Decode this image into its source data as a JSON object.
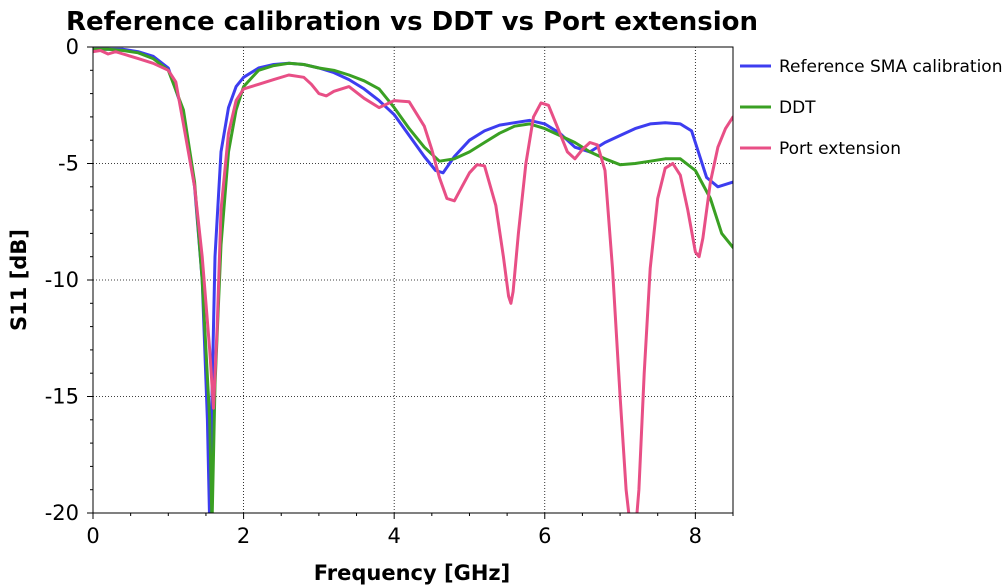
{
  "chart_data": {
    "type": "line",
    "title": "Reference calibration vs DDT vs Port extension",
    "xlabel": "Frequency [GHz]",
    "ylabel": "S11 [dB]",
    "xlim": [
      0,
      8.5
    ],
    "ylim": [
      -20,
      0
    ],
    "xticks": [
      0,
      2,
      4,
      6,
      8
    ],
    "xtick_labels": [
      "0",
      "2",
      "4",
      "6",
      "8"
    ],
    "yticks": [
      0,
      -5,
      -10,
      -15,
      -20
    ],
    "ytick_labels": [
      "0",
      "-5",
      "-10",
      "-15",
      "-20"
    ],
    "grid": true,
    "legend_position": "right",
    "series": [
      {
        "name": "Reference SMA calibration",
        "color": "#3d3df0",
        "x": [
          0,
          0.2,
          0.4,
          0.6,
          0.8,
          1.0,
          1.2,
          1.35,
          1.45,
          1.52,
          1.55,
          1.58,
          1.62,
          1.7,
          1.8,
          1.9,
          2.0,
          2.2,
          2.4,
          2.6,
          2.8,
          3.0,
          3.2,
          3.4,
          3.6,
          3.8,
          4.0,
          4.2,
          4.4,
          4.55,
          4.65,
          4.8,
          5.0,
          5.2,
          5.4,
          5.6,
          5.8,
          6.0,
          6.2,
          6.4,
          6.6,
          6.8,
          7.0,
          7.2,
          7.4,
          7.6,
          7.8,
          7.95,
          8.05,
          8.15,
          8.3,
          8.5
        ],
        "y": [
          -0.1,
          -0.1,
          -0.1,
          -0.2,
          -0.4,
          -0.9,
          -2.8,
          -6.0,
          -10.0,
          -16.0,
          -20.5,
          -15.0,
          -9.0,
          -4.5,
          -2.6,
          -1.7,
          -1.3,
          -0.9,
          -0.75,
          -0.7,
          -0.75,
          -0.9,
          -1.1,
          -1.4,
          -1.8,
          -2.3,
          -2.9,
          -3.8,
          -4.7,
          -5.3,
          -5.4,
          -4.7,
          -4.0,
          -3.6,
          -3.35,
          -3.25,
          -3.15,
          -3.3,
          -3.7,
          -4.3,
          -4.5,
          -4.1,
          -3.8,
          -3.5,
          -3.3,
          -3.25,
          -3.3,
          -3.6,
          -4.6,
          -5.6,
          -6.0,
          -5.8
        ]
      },
      {
        "name": "DDT",
        "color": "#3aa023",
        "x": [
          0,
          0.2,
          0.4,
          0.6,
          0.8,
          1.0,
          1.2,
          1.35,
          1.45,
          1.55,
          1.58,
          1.62,
          1.7,
          1.8,
          1.9,
          2.0,
          2.2,
          2.4,
          2.6,
          2.8,
          3.0,
          3.2,
          3.4,
          3.6,
          3.8,
          4.0,
          4.2,
          4.4,
          4.6,
          4.8,
          5.0,
          5.2,
          5.4,
          5.6,
          5.8,
          6.0,
          6.2,
          6.4,
          6.6,
          6.8,
          7.0,
          7.2,
          7.4,
          7.6,
          7.8,
          8.0,
          8.2,
          8.35,
          8.5
        ],
        "y": [
          -0.1,
          -0.1,
          -0.15,
          -0.25,
          -0.5,
          -1.0,
          -2.7,
          -5.8,
          -10.0,
          -16.0,
          -20.5,
          -14.5,
          -8.5,
          -4.5,
          -2.7,
          -1.7,
          -1.0,
          -0.8,
          -0.7,
          -0.75,
          -0.9,
          -1.0,
          -1.2,
          -1.45,
          -1.8,
          -2.6,
          -3.5,
          -4.3,
          -4.9,
          -4.8,
          -4.5,
          -4.1,
          -3.7,
          -3.4,
          -3.3,
          -3.5,
          -3.8,
          -4.1,
          -4.5,
          -4.8,
          -5.05,
          -5.0,
          -4.9,
          -4.8,
          -4.8,
          -5.3,
          -6.5,
          -8.0,
          -8.6
        ]
      },
      {
        "name": "Port extension",
        "color": "#e84f86",
        "x": [
          0,
          0.1,
          0.2,
          0.3,
          0.4,
          0.6,
          0.8,
          1.0,
          1.1,
          1.2,
          1.35,
          1.45,
          1.55,
          1.6,
          1.65,
          1.7,
          1.8,
          1.9,
          2.0,
          2.2,
          2.4,
          2.6,
          2.8,
          2.9,
          3.0,
          3.1,
          3.2,
          3.4,
          3.6,
          3.8,
          4.0,
          4.2,
          4.4,
          4.5,
          4.6,
          4.7,
          4.8,
          4.9,
          5.0,
          5.1,
          5.2,
          5.35,
          5.45,
          5.52,
          5.55,
          5.58,
          5.65,
          5.75,
          5.85,
          5.95,
          6.05,
          6.15,
          6.3,
          6.4,
          6.5,
          6.6,
          6.7,
          6.8,
          6.9,
          7.0,
          7.08,
          7.15,
          7.2,
          7.25,
          7.32,
          7.4,
          7.5,
          7.6,
          7.7,
          7.8,
          7.9,
          8.0,
          8.05,
          8.1,
          8.2,
          8.3,
          8.4,
          8.5
        ],
        "y": [
          -0.2,
          -0.15,
          -0.3,
          -0.2,
          -0.3,
          -0.5,
          -0.7,
          -1.0,
          -1.5,
          -3.3,
          -6.0,
          -9.0,
          -13.0,
          -15.5,
          -12.0,
          -7.0,
          -3.7,
          -2.3,
          -1.8,
          -1.6,
          -1.4,
          -1.2,
          -1.3,
          -1.6,
          -2.0,
          -2.1,
          -1.9,
          -1.7,
          -2.2,
          -2.6,
          -2.3,
          -2.35,
          -3.4,
          -4.4,
          -5.6,
          -6.5,
          -6.6,
          -6.0,
          -5.4,
          -5.05,
          -5.1,
          -6.8,
          -9.0,
          -10.7,
          -11.0,
          -10.5,
          -8.0,
          -5.0,
          -3.0,
          -2.4,
          -2.5,
          -3.3,
          -4.5,
          -4.8,
          -4.4,
          -4.1,
          -4.2,
          -5.3,
          -9.5,
          -15.0,
          -19.0,
          -21.0,
          -21.0,
          -19.0,
          -14.0,
          -9.5,
          -6.5,
          -5.2,
          -5.0,
          -5.5,
          -7.0,
          -8.8,
          -9.0,
          -8.2,
          -5.8,
          -4.3,
          -3.5,
          -3.0
        ]
      }
    ]
  }
}
